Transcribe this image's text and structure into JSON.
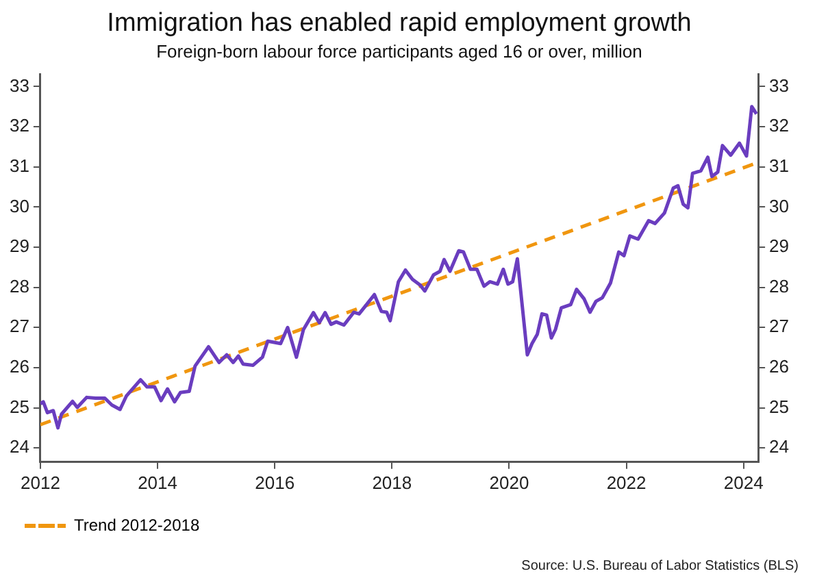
{
  "chart_data": {
    "type": "line",
    "title": "Immigration has enabled rapid employment growth",
    "subtitle": "Foreign-born labour force participants aged 16 or over, million",
    "series": [
      {
        "color": "#6a3dbf",
        "x": [
          2012.0,
          2012.05,
          2012.12,
          2012.22,
          2012.3,
          2012.36,
          2012.55,
          2012.63,
          2012.79,
          2012.94,
          2013.1,
          2013.22,
          2013.36,
          2013.47,
          2013.71,
          2013.82,
          2013.95,
          2014.06,
          2014.17,
          2014.29,
          2014.39,
          2014.54,
          2014.64,
          2014.87,
          2015.05,
          2015.18,
          2015.29,
          2015.38,
          2015.46,
          2015.63,
          2015.79,
          2015.88,
          2016.1,
          2016.22,
          2016.37,
          2016.49,
          2016.66,
          2016.76,
          2016.86,
          2016.96,
          2017.05,
          2017.18,
          2017.35,
          2017.44,
          2017.55,
          2017.7,
          2017.82,
          2017.91,
          2017.97,
          2018.11,
          2018.23,
          2018.35,
          2018.48,
          2018.56,
          2018.71,
          2018.82,
          2018.89,
          2018.99,
          2019.14,
          2019.22,
          2019.34,
          2019.45,
          2019.57,
          2019.67,
          2019.8,
          2019.9,
          2019.98,
          2020.06,
          2020.14,
          2020.31,
          2020.39,
          2020.48,
          2020.56,
          2020.64,
          2020.72,
          2020.79,
          2020.89,
          2021.05,
          2021.15,
          2021.28,
          2021.38,
          2021.48,
          2021.59,
          2021.73,
          2021.87,
          2021.96,
          2022.06,
          2022.2,
          2022.38,
          2022.49,
          2022.65,
          2022.8,
          2022.88,
          2022.97,
          2023.05,
          2023.13,
          2023.27,
          2023.39,
          2023.46,
          2023.56,
          2023.64,
          2023.78,
          2023.93,
          2024.05,
          2024.14,
          2024.22
        ],
        "values": [
          25.1,
          25.15,
          24.88,
          24.93,
          24.5,
          24.84,
          25.16,
          25.01,
          25.26,
          25.24,
          25.24,
          25.07,
          24.96,
          25.3,
          25.7,
          25.52,
          25.52,
          25.18,
          25.47,
          25.15,
          25.38,
          25.41,
          26.04,
          26.52,
          26.13,
          26.32,
          26.13,
          26.29,
          26.09,
          26.06,
          26.26,
          26.66,
          26.6,
          27.0,
          26.26,
          26.95,
          27.37,
          27.12,
          27.37,
          27.08,
          27.14,
          27.06,
          27.38,
          27.34,
          27.54,
          27.82,
          27.4,
          27.38,
          27.17,
          28.14,
          28.43,
          28.2,
          28.06,
          27.91,
          28.31,
          28.4,
          28.69,
          28.4,
          28.91,
          28.88,
          28.45,
          28.45,
          28.03,
          28.14,
          28.08,
          28.45,
          28.08,
          28.14,
          28.71,
          26.32,
          26.6,
          26.83,
          27.34,
          27.31,
          26.74,
          26.95,
          27.49,
          27.57,
          27.95,
          27.71,
          27.38,
          27.65,
          27.74,
          28.11,
          28.88,
          28.79,
          29.28,
          29.2,
          29.66,
          29.59,
          29.85,
          30.47,
          30.53,
          30.07,
          29.98,
          30.84,
          30.9,
          31.24,
          30.76,
          30.87,
          31.53,
          31.29,
          31.59,
          31.27,
          32.5,
          32.32
        ]
      },
      {
        "name": "Trend 2012-2018",
        "color": "#f0960f",
        "line_style": "dashed",
        "x": [
          2012.0,
          2024.23
        ],
        "values": [
          24.58,
          31.1
        ]
      }
    ],
    "xlim": [
      2012,
      2024.25
    ],
    "xticks": [
      2012,
      2014,
      2016,
      2018,
      2020,
      2022,
      2024
    ],
    "ylim": [
      23.65,
      33.3
    ],
    "yticks": [
      24,
      25,
      26,
      27,
      28,
      29,
      30,
      31,
      32,
      33
    ],
    "y2lim": [
      23.65,
      33.3
    ],
    "y2ticks": [
      24,
      25,
      26,
      27,
      28,
      29,
      30,
      31,
      32,
      33
    ],
    "legend": "bottom",
    "grid": false,
    "marker": "none",
    "annotations": [
      "Source: U.S. Bureau of Labor Statistics (BLS)"
    ]
  }
}
